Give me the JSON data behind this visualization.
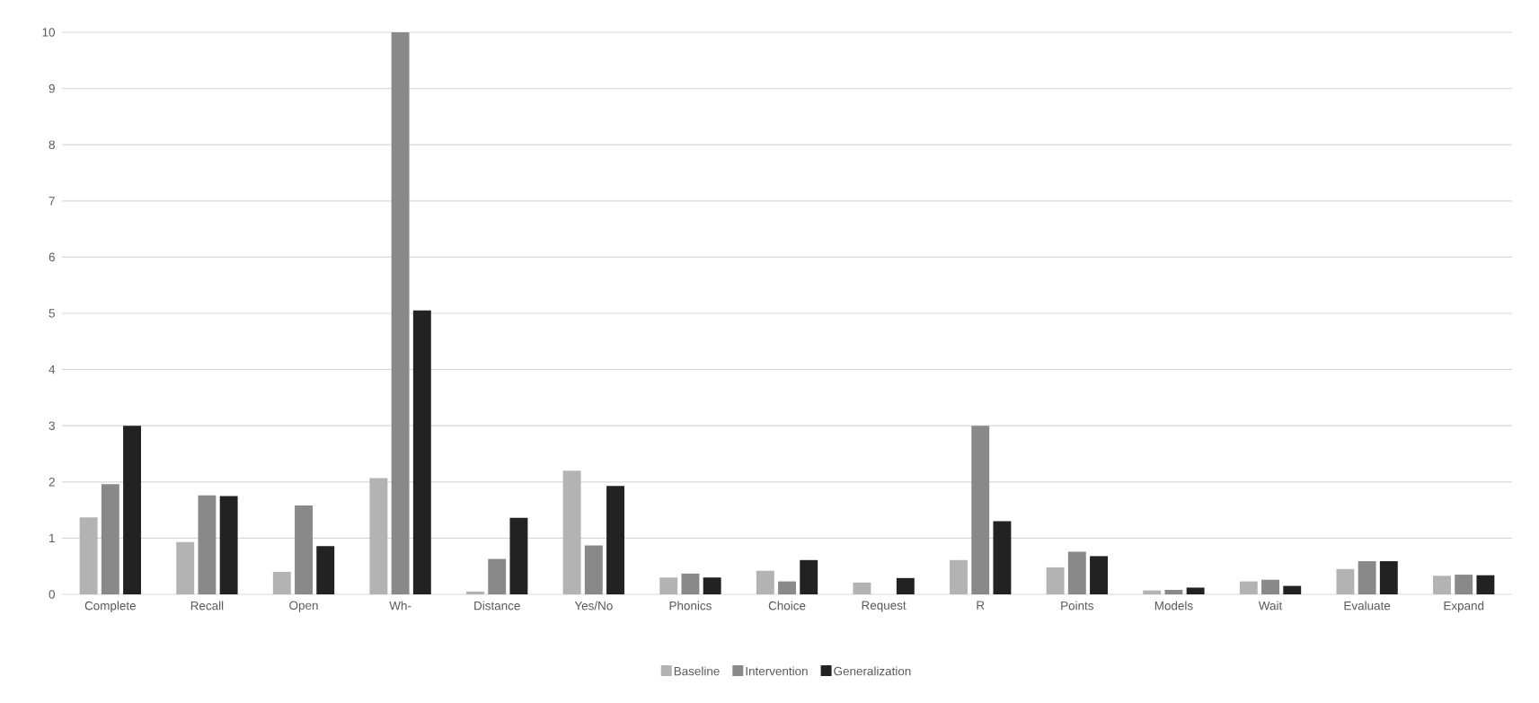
{
  "chart_data": {
    "type": "bar",
    "categories": [
      "Complete",
      "Recall",
      "Open",
      "Wh-",
      "Distance",
      "Yes/No",
      "Phonics",
      "Choice",
      "Request",
      "R",
      "Points",
      "Models",
      "Wait",
      "Evaluate",
      "Expand"
    ],
    "series": [
      {
        "name": "Baseline",
        "color": "#b3b3b3",
        "values": [
          1.37,
          0.93,
          0.4,
          2.07,
          0.05,
          2.2,
          0.3,
          0.42,
          0.21,
          0.61,
          0.48,
          0.07,
          0.23,
          0.45,
          0.33
        ]
      },
      {
        "name": "Intervention",
        "color": "#898989",
        "values": [
          1.96,
          1.76,
          1.58,
          10,
          0.63,
          0.87,
          0.37,
          0.23,
          0,
          3,
          0.76,
          0.08,
          0.26,
          0.59,
          0.35
        ]
      },
      {
        "name": "Generalization",
        "color": "#222222",
        "values": [
          3,
          1.75,
          0.86,
          5.05,
          1.36,
          1.93,
          0.3,
          0.61,
          0.29,
          1.3,
          0.68,
          0.12,
          0.15,
          0.59,
          0.34
        ]
      }
    ],
    "ylim": [
      0,
      10
    ],
    "yticks": [
      0,
      1,
      2,
      3,
      4,
      5,
      6,
      7,
      8,
      9,
      10
    ],
    "grid": "y",
    "legend": "bottom"
  }
}
